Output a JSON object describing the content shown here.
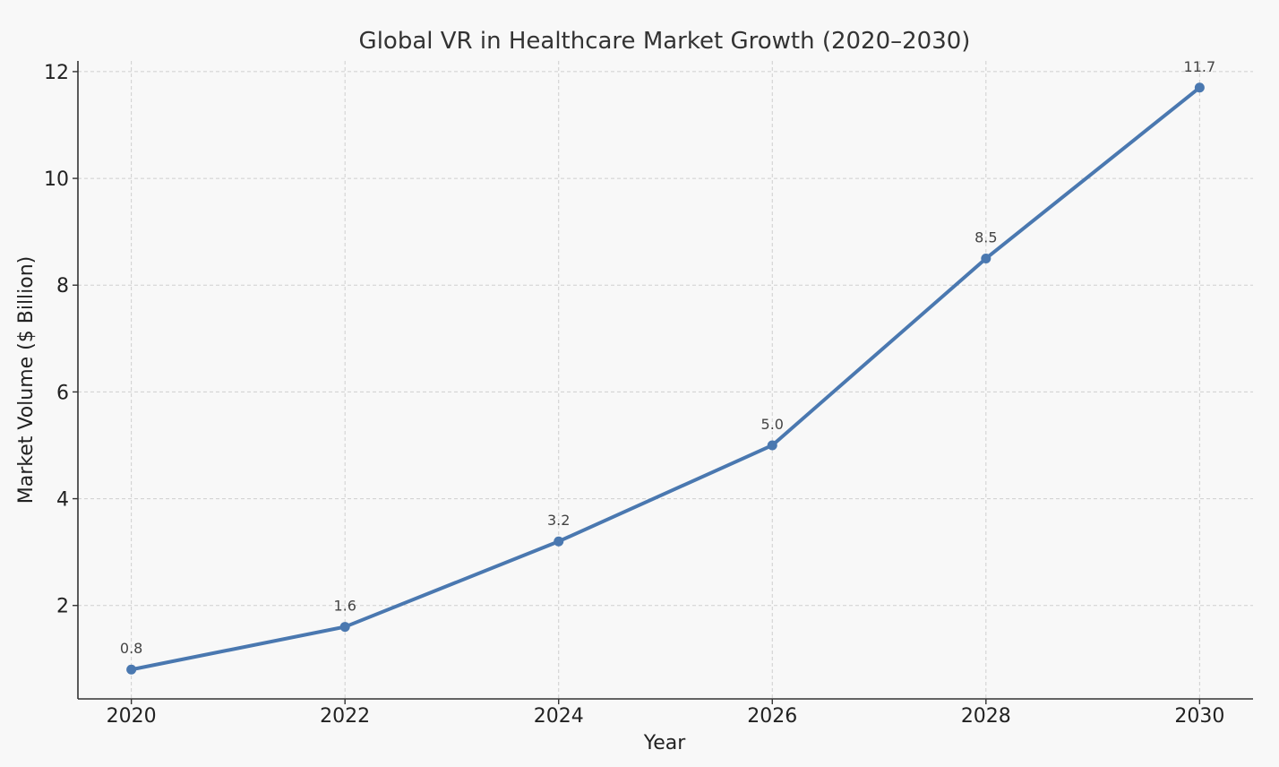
{
  "chart_data": {
    "type": "line",
    "title": "Global VR in Healthcare Market Growth (2020–2030)",
    "xlabel": "Year",
    "ylabel": "Market Volume ($ Billion)",
    "x": [
      2020,
      2022,
      2024,
      2026,
      2028,
      2030
    ],
    "xticks": [
      "2020",
      "2022",
      "2024",
      "2026",
      "2028",
      "2030"
    ],
    "xlim": [
      2019.5,
      2030.5
    ],
    "yticks": [
      2,
      4,
      6,
      8,
      10,
      12
    ],
    "ylim": [
      0.25,
      12.2
    ],
    "series": [
      {
        "values": [
          0.8,
          1.6,
          3.2,
          5.0,
          8.5,
          11.7
        ],
        "labels": [
          "0.8",
          "1.6",
          "3.2",
          "5.0",
          "8.5",
          "11.7"
        ],
        "color": "#4a78b0"
      }
    ],
    "grid": true,
    "legend": "none"
  }
}
